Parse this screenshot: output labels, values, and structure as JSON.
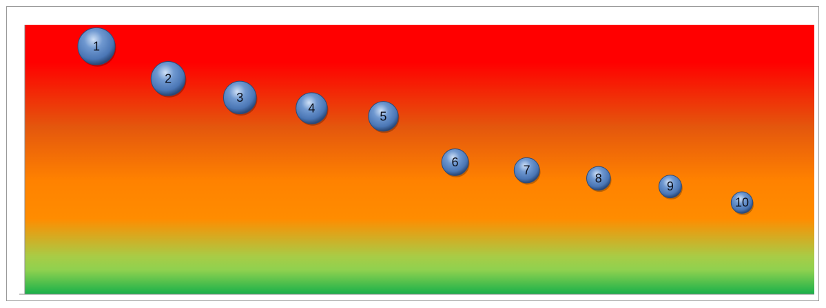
{
  "chart_data": {
    "type": "bubble",
    "title": "",
    "xlabel": "",
    "ylabel": "",
    "xlim": [
      0,
      10
    ],
    "ylim": [
      0,
      10
    ],
    "grid": false,
    "legend": "none",
    "background_gradient": [
      "#ff0000",
      "#ff0000",
      "#e4570d",
      "#ff8200",
      "#ff8c00",
      "#a8cc46",
      "#8fd14f",
      "#18b04a"
    ],
    "bubble_color": "#4a76b5",
    "points": [
      {
        "label": "1",
        "x": 1,
        "y": 9.2,
        "size": 1.0
      },
      {
        "label": "2",
        "x": 2,
        "y": 8.0,
        "size": 0.92
      },
      {
        "label": "3",
        "x": 3,
        "y": 7.3,
        "size": 0.88
      },
      {
        "label": "4",
        "x": 4,
        "y": 6.9,
        "size": 0.84
      },
      {
        "label": "5",
        "x": 5,
        "y": 6.6,
        "size": 0.8
      },
      {
        "label": "6",
        "x": 6,
        "y": 4.9,
        "size": 0.72
      },
      {
        "label": "7",
        "x": 7,
        "y": 4.6,
        "size": 0.68
      },
      {
        "label": "8",
        "x": 8,
        "y": 4.3,
        "size": 0.64
      },
      {
        "label": "9",
        "x": 9,
        "y": 4.0,
        "size": 0.61
      },
      {
        "label": "10",
        "x": 10,
        "y": 3.4,
        "size": 0.58
      }
    ]
  }
}
